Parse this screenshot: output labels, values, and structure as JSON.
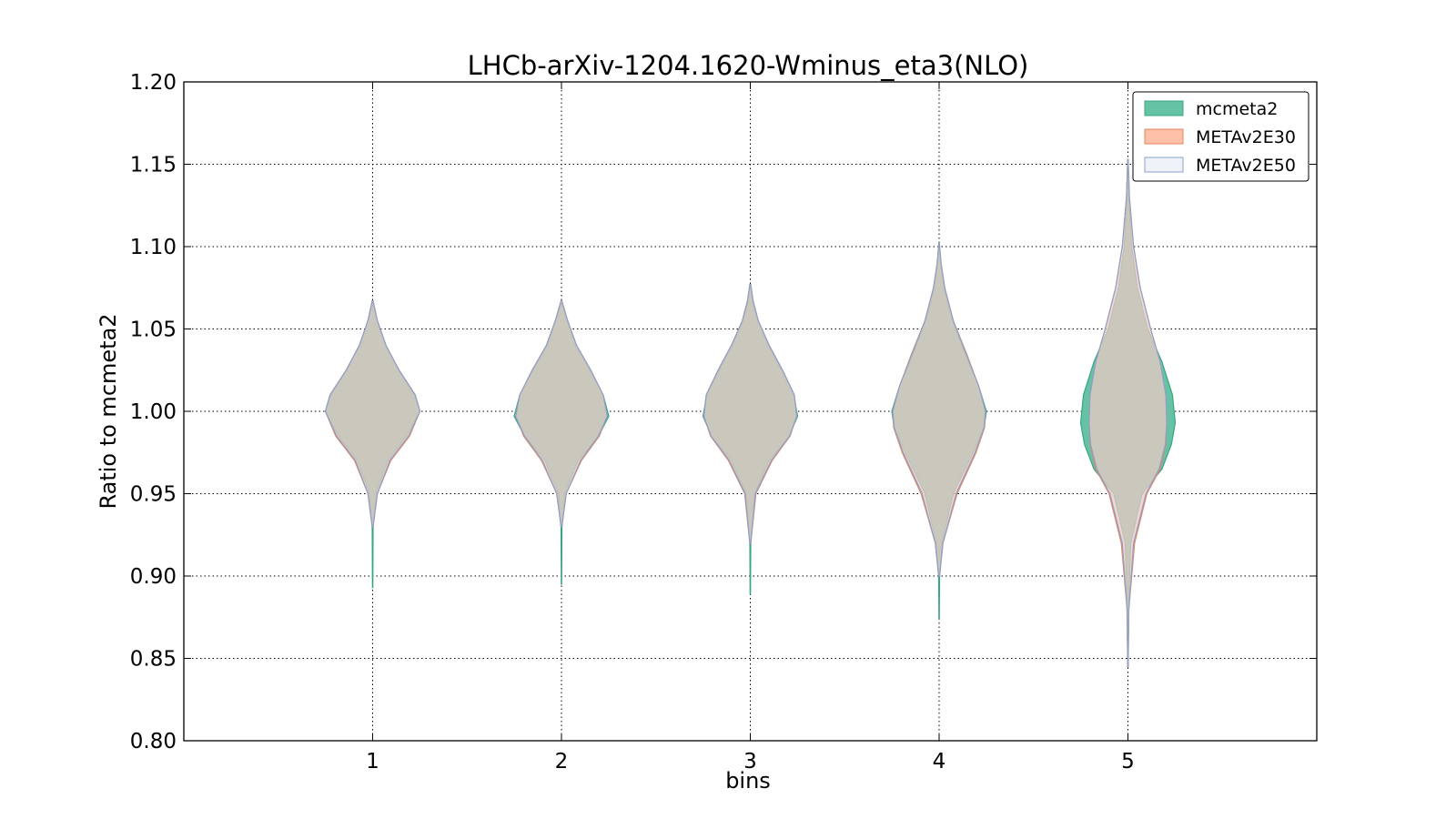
{
  "chart_data": {
    "type": "violin",
    "title": "LHCb-arXiv-1204.1620-Wminus_eta3(NLO)",
    "xlabel": "bins",
    "ylabel": "Ratio to mcmeta2",
    "xlim": [
      0,
      6
    ],
    "ylim": [
      0.8,
      1.2
    ],
    "xticks": [
      "1",
      "2",
      "3",
      "4",
      "5"
    ],
    "yticks": [
      "0.80",
      "0.85",
      "0.90",
      "0.95",
      "1.00",
      "1.05",
      "1.10",
      "1.15",
      "1.20"
    ],
    "grid": true,
    "legend_position": "top-right",
    "legend": [
      "mcmeta2",
      "METAv2E30",
      "METAv2E50"
    ],
    "series": [
      {
        "name": "mcmeta2",
        "fill": "#66c2a5",
        "stroke": "#3aa585",
        "bins": [
          {
            "x": 1,
            "y_min": 0.893,
            "y_max": 1.065,
            "profile": [
              [
                0.893,
                0.004
              ],
              [
                0.93,
                0.01
              ],
              [
                0.95,
                0.07
              ],
              [
                0.97,
                0.32
              ],
              [
                0.985,
                0.72
              ],
              [
                1.0,
                1.0
              ],
              [
                1.01,
                0.88
              ],
              [
                1.025,
                0.55
              ],
              [
                1.04,
                0.28
              ],
              [
                1.055,
                0.1
              ],
              [
                1.065,
                0.01
              ]
            ]
          },
          {
            "x": 2,
            "y_min": 0.895,
            "y_max": 1.065,
            "profile": [
              [
                0.895,
                0.004
              ],
              [
                0.93,
                0.01
              ],
              [
                0.95,
                0.07
              ],
              [
                0.97,
                0.35
              ],
              [
                0.985,
                0.78
              ],
              [
                0.997,
                1.0
              ],
              [
                1.01,
                0.88
              ],
              [
                1.025,
                0.6
              ],
              [
                1.04,
                0.3
              ],
              [
                1.055,
                0.12
              ],
              [
                1.065,
                0.01
              ]
            ]
          },
          {
            "x": 3,
            "y_min": 0.889,
            "y_max": 1.075,
            "profile": [
              [
                0.889,
                0.004
              ],
              [
                0.92,
                0.01
              ],
              [
                0.95,
                0.09
              ],
              [
                0.97,
                0.4
              ],
              [
                0.985,
                0.82
              ],
              [
                0.997,
                1.0
              ],
              [
                1.01,
                0.92
              ],
              [
                1.025,
                0.66
              ],
              [
                1.04,
                0.38
              ],
              [
                1.055,
                0.16
              ],
              [
                1.065,
                0.06
              ],
              [
                1.075,
                0.01
              ]
            ]
          },
          {
            "x": 4,
            "y_min": 0.874,
            "y_max": 1.1,
            "profile": [
              [
                0.874,
                0.004
              ],
              [
                0.9,
                0.01
              ],
              [
                0.92,
                0.06
              ],
              [
                0.95,
                0.3
              ],
              [
                0.975,
                0.72
              ],
              [
                0.99,
                0.95
              ],
              [
                1.0,
                1.0
              ],
              [
                1.015,
                0.84
              ],
              [
                1.035,
                0.55
              ],
              [
                1.055,
                0.28
              ],
              [
                1.075,
                0.1
              ],
              [
                1.09,
                0.03
              ],
              [
                1.1,
                0.006
              ]
            ]
          },
          {
            "x": 5,
            "y_min": 0.845,
            "y_max": 1.153,
            "profile": [
              [
                0.845,
                0.004
              ],
              [
                0.88,
                0.012
              ],
              [
                0.92,
                0.06
              ],
              [
                0.95,
                0.3
              ],
              [
                0.965,
                0.72
              ],
              [
                0.98,
                0.92
              ],
              [
                0.993,
                1.0
              ],
              [
                1.01,
                0.94
              ],
              [
                1.03,
                0.72
              ],
              [
                1.05,
                0.42
              ],
              [
                1.075,
                0.2
              ],
              [
                1.1,
                0.08
              ],
              [
                1.13,
                0.02
              ],
              [
                1.153,
                0.004
              ]
            ]
          }
        ]
      },
      {
        "name": "METAv2E30",
        "fill": "#fc8d62",
        "stroke": "#e8845f",
        "bins": [
          {
            "x": 1,
            "y_min": 0.93,
            "y_max": 1.067,
            "profile": [
              [
                0.93,
                0.01
              ],
              [
                0.95,
                0.1
              ],
              [
                0.97,
                0.38
              ],
              [
                0.985,
                0.78
              ],
              [
                1.0,
                1.0
              ],
              [
                1.01,
                0.9
              ],
              [
                1.025,
                0.56
              ],
              [
                1.04,
                0.28
              ],
              [
                1.055,
                0.1
              ],
              [
                1.067,
                0.01
              ]
            ]
          },
          {
            "x": 2,
            "y_min": 0.93,
            "y_max": 1.067,
            "profile": [
              [
                0.93,
                0.01
              ],
              [
                0.95,
                0.1
              ],
              [
                0.97,
                0.42
              ],
              [
                0.985,
                0.8
              ],
              [
                0.997,
                0.96
              ],
              [
                1.01,
                0.88
              ],
              [
                1.025,
                0.62
              ],
              [
                1.04,
                0.32
              ],
              [
                1.055,
                0.13
              ],
              [
                1.067,
                0.01
              ]
            ]
          },
          {
            "x": 3,
            "y_min": 0.92,
            "y_max": 1.077,
            "profile": [
              [
                0.92,
                0.01
              ],
              [
                0.95,
                0.12
              ],
              [
                0.97,
                0.46
              ],
              [
                0.985,
                0.84
              ],
              [
                0.997,
                0.98
              ],
              [
                1.01,
                0.93
              ],
              [
                1.025,
                0.68
              ],
              [
                1.04,
                0.4
              ],
              [
                1.055,
                0.17
              ],
              [
                1.067,
                0.06
              ],
              [
                1.077,
                0.01
              ]
            ]
          },
          {
            "x": 4,
            "y_min": 0.9,
            "y_max": 1.102,
            "profile": [
              [
                0.9,
                0.01
              ],
              [
                0.92,
                0.08
              ],
              [
                0.95,
                0.38
              ],
              [
                0.975,
                0.78
              ],
              [
                0.99,
                0.96
              ],
              [
                1.0,
                0.98
              ],
              [
                1.015,
                0.84
              ],
              [
                1.035,
                0.58
              ],
              [
                1.055,
                0.3
              ],
              [
                1.075,
                0.12
              ],
              [
                1.09,
                0.04
              ],
              [
                1.102,
                0.006
              ]
            ]
          },
          {
            "x": 5,
            "y_min": 0.845,
            "y_max": 1.153,
            "profile": [
              [
                0.845,
                0.004
              ],
              [
                0.88,
                0.02
              ],
              [
                0.92,
                0.14
              ],
              [
                0.95,
                0.4
              ],
              [
                0.965,
                0.68
              ],
              [
                0.98,
                0.8
              ],
              [
                0.993,
                0.82
              ],
              [
                1.01,
                0.8
              ],
              [
                1.03,
                0.68
              ],
              [
                1.05,
                0.48
              ],
              [
                1.075,
                0.26
              ],
              [
                1.1,
                0.12
              ],
              [
                1.13,
                0.03
              ],
              [
                1.153,
                0.004
              ]
            ]
          }
        ]
      },
      {
        "name": "METAv2E50",
        "fill": "#e3e8f5",
        "stroke": "#8da0cb",
        "bins": [
          {
            "x": 1,
            "y_min": 0.93,
            "y_max": 1.067,
            "profile": [
              [
                0.93,
                0.01
              ],
              [
                0.95,
                0.1
              ],
              [
                0.97,
                0.36
              ],
              [
                0.985,
                0.76
              ],
              [
                1.0,
                1.0
              ],
              [
                1.01,
                0.9
              ],
              [
                1.025,
                0.56
              ],
              [
                1.04,
                0.28
              ],
              [
                1.055,
                0.1
              ],
              [
                1.067,
                0.01
              ]
            ]
          },
          {
            "x": 2,
            "y_min": 0.93,
            "y_max": 1.067,
            "profile": [
              [
                0.93,
                0.01
              ],
              [
                0.95,
                0.1
              ],
              [
                0.97,
                0.4
              ],
              [
                0.985,
                0.78
              ],
              [
                0.997,
                0.97
              ],
              [
                1.01,
                0.88
              ],
              [
                1.025,
                0.62
              ],
              [
                1.04,
                0.32
              ],
              [
                1.055,
                0.13
              ],
              [
                1.067,
                0.01
              ]
            ]
          },
          {
            "x": 3,
            "y_min": 0.92,
            "y_max": 1.077,
            "profile": [
              [
                0.92,
                0.01
              ],
              [
                0.95,
                0.11
              ],
              [
                0.97,
                0.44
              ],
              [
                0.985,
                0.83
              ],
              [
                0.997,
                0.98
              ],
              [
                1.01,
                0.93
              ],
              [
                1.025,
                0.68
              ],
              [
                1.04,
                0.4
              ],
              [
                1.055,
                0.17
              ],
              [
                1.067,
                0.06
              ],
              [
                1.077,
                0.01
              ]
            ]
          },
          {
            "x": 4,
            "y_min": 0.9,
            "y_max": 1.102,
            "profile": [
              [
                0.9,
                0.01
              ],
              [
                0.92,
                0.08
              ],
              [
                0.95,
                0.36
              ],
              [
                0.975,
                0.76
              ],
              [
                0.99,
                0.95
              ],
              [
                1.0,
                0.98
              ],
              [
                1.015,
                0.84
              ],
              [
                1.035,
                0.57
              ],
              [
                1.055,
                0.3
              ],
              [
                1.075,
                0.12
              ],
              [
                1.09,
                0.04
              ],
              [
                1.102,
                0.006
              ]
            ]
          },
          {
            "x": 5,
            "y_min": 0.845,
            "y_max": 1.153,
            "profile": [
              [
                0.845,
                0.004
              ],
              [
                0.88,
                0.02
              ],
              [
                0.92,
                0.12
              ],
              [
                0.95,
                0.38
              ],
              [
                0.965,
                0.66
              ],
              [
                0.98,
                0.79
              ],
              [
                0.993,
                0.82
              ],
              [
                1.01,
                0.8
              ],
              [
                1.03,
                0.68
              ],
              [
                1.05,
                0.48
              ],
              [
                1.075,
                0.26
              ],
              [
                1.1,
                0.12
              ],
              [
                1.13,
                0.03
              ],
              [
                1.153,
                0.004
              ]
            ]
          }
        ]
      }
    ]
  }
}
